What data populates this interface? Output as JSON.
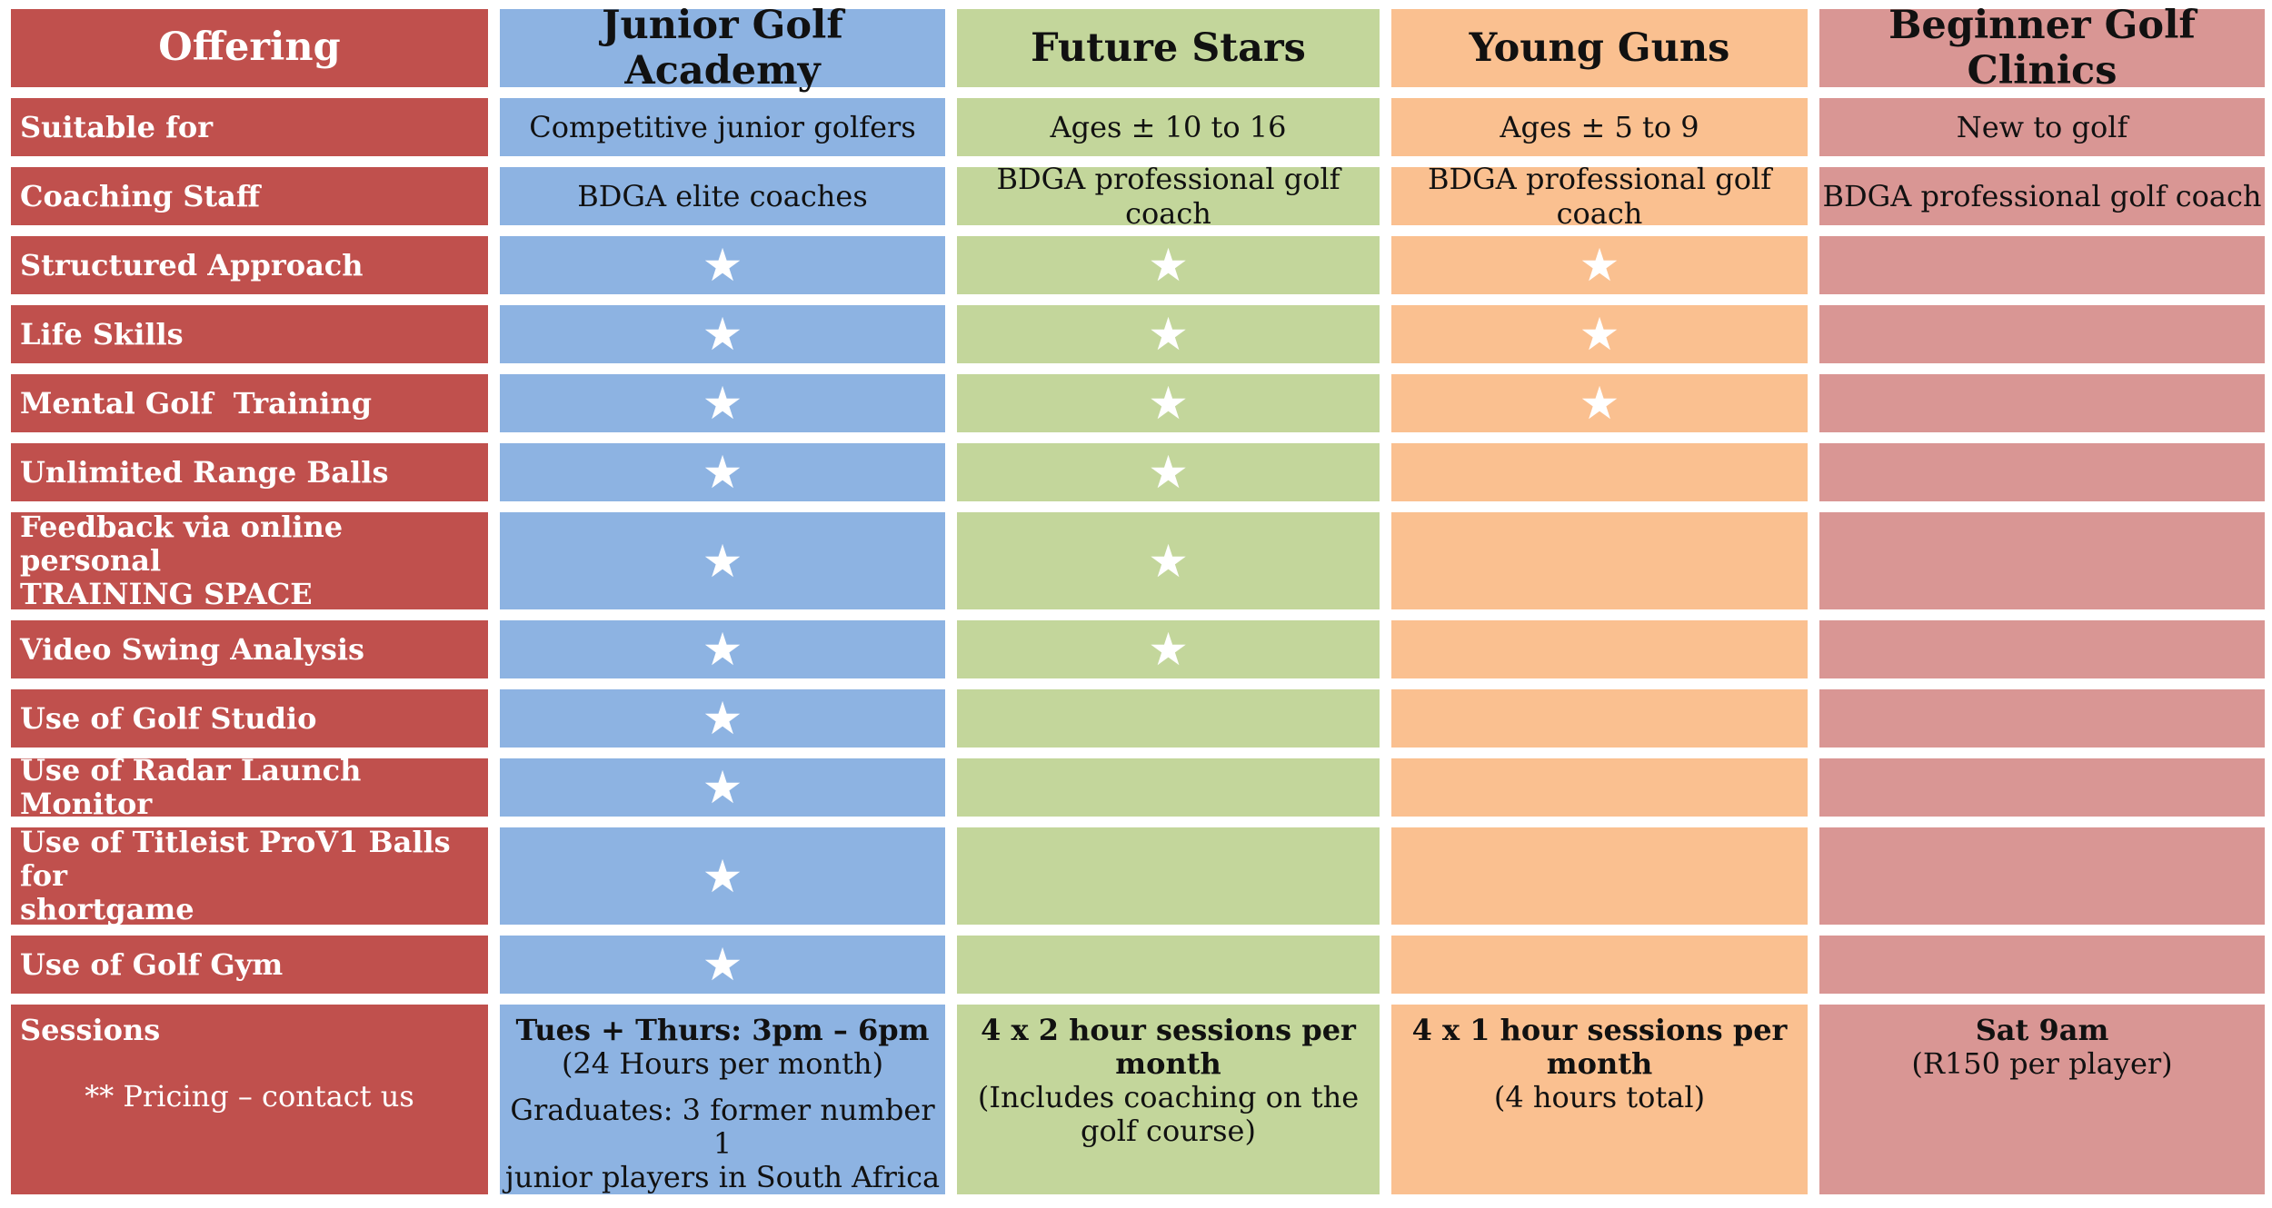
{
  "header": {
    "offering": "Offering",
    "programs": [
      "Junior Golf Academy",
      "Future Stars",
      "Young Guns",
      "Beginner Golf Clinics"
    ]
  },
  "rows": {
    "suitable_for": {
      "label": "Suitable for",
      "values": [
        "Competitive junior golfers",
        "Ages ± 10 to 16",
        "Ages ± 5 to 9",
        "New to golf"
      ]
    },
    "coaching_staff": {
      "label": "Coaching Staff",
      "values": [
        "BDGA elite coaches",
        "BDGA professional golf coach",
        "BDGA professional golf coach",
        "BDGA professional golf coach"
      ]
    },
    "structured_approach": {
      "label": "Structured Approach",
      "included": [
        true,
        true,
        true,
        false
      ]
    },
    "life_skills": {
      "label": "Life Skills",
      "included": [
        true,
        true,
        true,
        false
      ]
    },
    "mental_golf_training": {
      "label": "Mental Golf  Training",
      "included": [
        true,
        true,
        true,
        false
      ]
    },
    "unlimited_range_balls": {
      "label": "Unlimited Range Balls",
      "included": [
        true,
        true,
        false,
        false
      ]
    },
    "feedback_training_space": {
      "label_line1": "Feedback via online personal",
      "label_line2": "TRAINING SPACE",
      "included": [
        true,
        true,
        false,
        false
      ]
    },
    "video_swing_analysis": {
      "label": "Video Swing Analysis",
      "included": [
        true,
        true,
        false,
        false
      ]
    },
    "golf_studio": {
      "label": "Use of Golf Studio",
      "included": [
        true,
        false,
        false,
        false
      ]
    },
    "radar_launch_monitor": {
      "label": "Use of Radar Launch Monitor",
      "included": [
        true,
        false,
        false,
        false
      ]
    },
    "titleist_balls": {
      "label_line1": "Use of Titleist ProV1 Balls for",
      "label_line2": "shortgame",
      "included": [
        true,
        false,
        false,
        false
      ]
    },
    "golf_gym": {
      "label": "Use of Golf Gym",
      "included": [
        true,
        false,
        false,
        false
      ]
    }
  },
  "sessions": {
    "label": "Sessions",
    "pricing_note": "** Pricing – contact us",
    "junior_golf_academy": {
      "line1": "Tues + Thurs: 3pm – 6pm",
      "line2": "(24 Hours per month)",
      "line3": "Graduates: 3 former number 1",
      "line4": "junior players in South Africa"
    },
    "future_stars": {
      "line1": "4 x 2 hour sessions per",
      "line2": "month",
      "line3": "(Includes coaching on the",
      "line4": "golf course)"
    },
    "young_guns": {
      "line1": "4 x 1 hour sessions per",
      "line2": "month",
      "line3": "(4 hours total)"
    },
    "beginner_golf_clinics": {
      "line1": "Sat 9am",
      "line2": "(R150 per player)"
    }
  },
  "star_glyph": "★",
  "colors": {
    "label": "#c0504d",
    "junior_golf_academy": "#8db3e2",
    "future_stars": "#c3d69b",
    "young_guns": "#fac090",
    "beginner_golf_clinics": "#d99694"
  }
}
